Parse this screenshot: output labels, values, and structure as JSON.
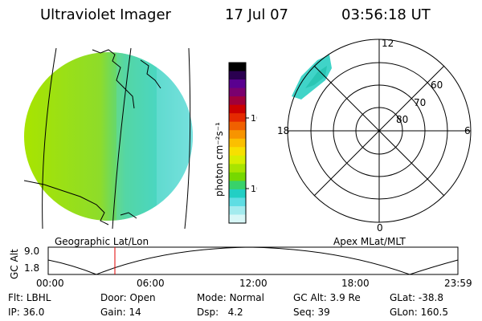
{
  "header": {
    "title": "Ultraviolet Imager",
    "date": "17 Jul 07",
    "time": "03:56:18 UT"
  },
  "colorbar": {
    "unit_label": "photon cm⁻²s⁻¹",
    "tick_labels": [
      "100",
      "10"
    ],
    "colors": [
      "#000000",
      "#2a0050",
      "#5a0090",
      "#7a006e",
      "#a0003a",
      "#cc0000",
      "#e52a00",
      "#f06000",
      "#f79400",
      "#fbbf00",
      "#f7e000",
      "#d8ee00",
      "#a8e400",
      "#76d800",
      "#38d26a",
      "#22cfc4",
      "#5fdde3",
      "#a3ebee",
      "#d8f7f7"
    ]
  },
  "polar": {
    "labels": {
      "top": "12",
      "left": "18",
      "right": "6",
      "bottom": "0",
      "r60": "60",
      "r70": "70",
      "r80": "80"
    },
    "caption": "Apex MLat/MLT"
  },
  "geo": {
    "caption": "Geographic Lat/Lon"
  },
  "timeline": {
    "ylabel": "GC Alt",
    "y_ticks": [
      "9.0",
      "1.8"
    ],
    "x_ticks": [
      "00:00",
      "06:00",
      "12:00",
      "18:00",
      "23:59"
    ]
  },
  "info": {
    "row1": {
      "flt_label": "Flt:",
      "flt_value": "LBHL",
      "door_label": "Door:",
      "door_value": "Open",
      "mode_label": "Mode:",
      "mode_value": "Normal",
      "gcalt_label": "GC Alt:",
      "gcalt_value": "3.9 Re",
      "glat_label": "GLat:",
      "glat_value": "-38.8"
    },
    "row2": {
      "ip_label": "IP:",
      "ip_value": "36.0",
      "gain_label": "Gain:",
      "gain_value": "14",
      "dsp_label": "Dsp:",
      "dsp_value": "4.2",
      "seq_label": "Seq:",
      "seq_value": "39",
      "glon_label": "GLon:",
      "glon_value": "160.5"
    }
  }
}
